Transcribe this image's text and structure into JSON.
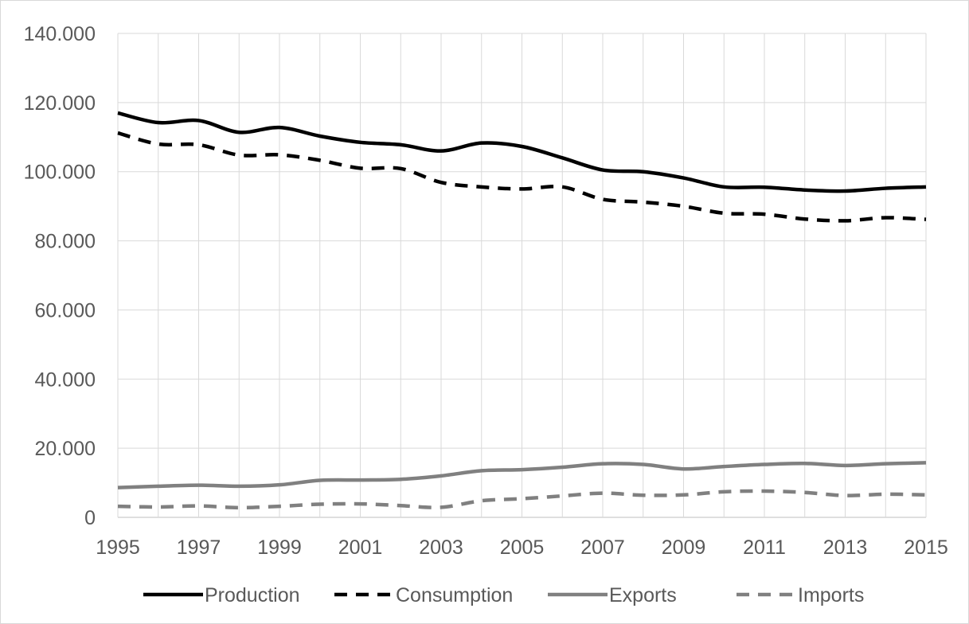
{
  "chart_data": {
    "type": "line",
    "title": "",
    "xlabel": "",
    "ylabel": "",
    "x": [
      1995,
      1996,
      1997,
      1998,
      1999,
      2000,
      2001,
      2002,
      2003,
      2004,
      2005,
      2006,
      2007,
      2008,
      2009,
      2010,
      2011,
      2012,
      2013,
      2014,
      2015
    ],
    "xticks": [
      "1995",
      "1997",
      "1999",
      "2001",
      "2003",
      "2005",
      "2007",
      "2009",
      "2011",
      "2013",
      "2015"
    ],
    "yticks": [
      "0",
      "20.000",
      "40.000",
      "60.000",
      "80.000",
      "100.000",
      "120.000",
      "140.000"
    ],
    "ylim": [
      0,
      140000
    ],
    "grid": true,
    "legend_position": "bottom",
    "series": [
      {
        "name": "Production",
        "color": "#000000",
        "style": "solid",
        "values": [
          117000,
          114200,
          114800,
          111400,
          112800,
          110300,
          108500,
          107800,
          106000,
          108300,
          107300,
          104000,
          100500,
          100000,
          98200,
          95600,
          95500,
          94700,
          94400,
          95200,
          95600
        ]
      },
      {
        "name": "Consumption",
        "color": "#000000",
        "style": "dashed",
        "values": [
          111200,
          108000,
          107800,
          104800,
          104900,
          103300,
          101000,
          100900,
          96900,
          95600,
          95000,
          95600,
          92000,
          91200,
          90000,
          88000,
          87700,
          86300,
          85800,
          86700,
          86200
        ]
      },
      {
        "name": "Exports",
        "color": "#808080",
        "style": "solid",
        "values": [
          8600,
          9000,
          9300,
          9000,
          9400,
          10700,
          10800,
          11000,
          12000,
          13500,
          13800,
          14500,
          15500,
          15300,
          14000,
          14700,
          15300,
          15600,
          15000,
          15500,
          15800
        ]
      },
      {
        "name": "Imports",
        "color": "#808080",
        "style": "dashed",
        "values": [
          3200,
          3000,
          3300,
          2800,
          3200,
          3800,
          3900,
          3400,
          2900,
          4800,
          5400,
          6200,
          7000,
          6400,
          6500,
          7400,
          7600,
          7200,
          6300,
          6700,
          6500
        ]
      }
    ]
  }
}
